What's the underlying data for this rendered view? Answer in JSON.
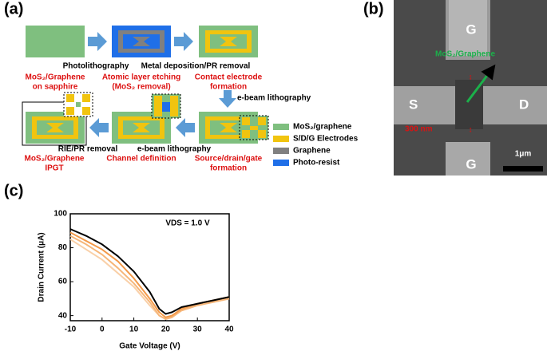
{
  "panel_a": {
    "label": "(a)",
    "steps": [
      {
        "caption": [
          "MoS₂/Graphene",
          "on sapphire"
        ]
      },
      {
        "caption": [
          "Atomic layer etching",
          "(MoS₂ removal)"
        ]
      },
      {
        "caption": [
          "Contact electrode",
          "formation"
        ]
      },
      {
        "caption": [
          "Source/drain/gate",
          "formation"
        ]
      },
      {
        "caption": [
          "Channel definition"
        ]
      },
      {
        "caption": [
          "MoS₂/Graphene",
          "IPGT"
        ]
      }
    ],
    "processes": [
      "Photolithography",
      "Metal deposition/PR removal",
      "e-beam lithography",
      "e-beam lithography",
      "RIE/PR removal"
    ],
    "legend": [
      "MoS₂/graphene",
      "S/D/G Electrodes",
      "Graphene",
      "Photo-resist"
    ]
  },
  "panel_b": {
    "label": "(b)",
    "gate_top": "G",
    "gate_bottom": "G",
    "source": "S",
    "drain": "D",
    "material": "MoS₂/Graphene",
    "gap": "300 nm",
    "scale_bar": "1μm"
  },
  "panel_c": {
    "label": "(c)"
  },
  "chart_data": {
    "type": "line",
    "xlabel": "Gate Voltage (V)",
    "ylabel": "Drain Current (μA)",
    "annotation": "VDS = 1.0 V",
    "x": [
      -10,
      -5,
      0,
      5,
      10,
      15,
      18,
      20,
      22,
      25,
      30,
      35,
      40
    ],
    "series": [
      {
        "color": "#000000",
        "values": [
          91,
          87,
          82,
          75,
          66,
          54,
          44,
          41,
          42,
          45,
          47,
          49,
          51
        ]
      },
      {
        "color": "#f39a4a",
        "values": [
          89,
          84,
          79,
          72,
          62,
          50,
          42,
          39,
          40,
          44,
          47,
          49,
          51
        ]
      },
      {
        "color": "#f6b679",
        "values": [
          87,
          82,
          76,
          68,
          59,
          48,
          40,
          38,
          39,
          43,
          46,
          48,
          50
        ]
      },
      {
        "color": "#f9d0a8",
        "values": [
          85,
          79,
          73,
          65,
          57,
          46,
          40,
          38,
          39,
          43,
          46,
          48,
          50
        ]
      }
    ],
    "xlim": [
      -10,
      40
    ],
    "xticks": [
      -10,
      0,
      10,
      20,
      30,
      40
    ],
    "ylim": [
      37,
      100
    ],
    "yticks": [
      40,
      60,
      80,
      100
    ]
  }
}
